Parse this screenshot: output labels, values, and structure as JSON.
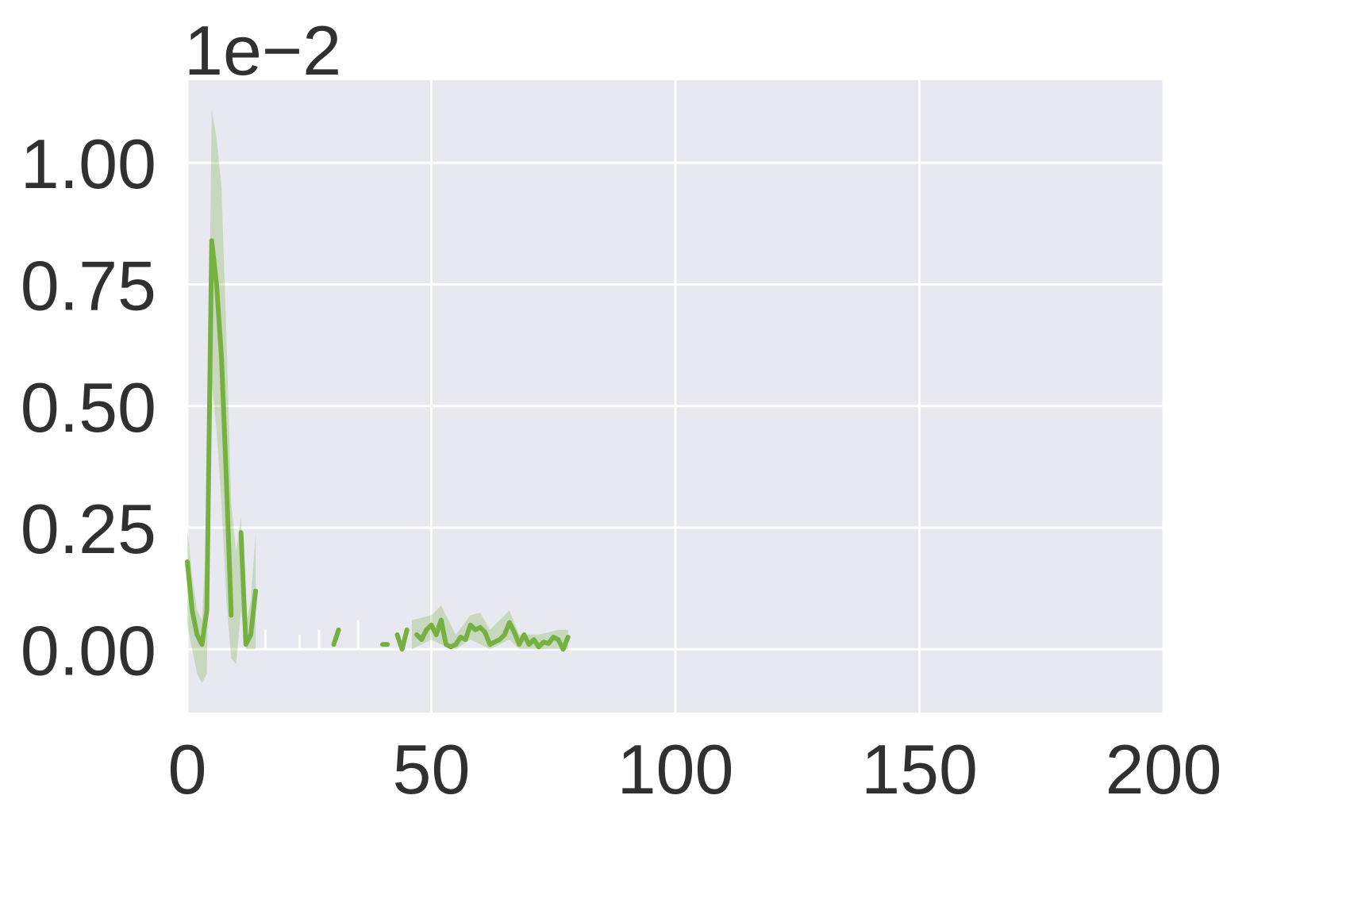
{
  "chart_data": {
    "type": "line",
    "offset_text": "1e−2",
    "xlim": [
      0,
      200
    ],
    "ylim": [
      -0.13,
      1.17
    ],
    "xticks": [
      0,
      50,
      100,
      150,
      200
    ],
    "xtick_labels": [
      "0",
      "50",
      "100",
      "150",
      "200"
    ],
    "yticks": [
      0.0,
      0.25,
      0.5,
      0.75,
      1.0
    ],
    "ytick_labels": [
      "0.00",
      "0.25",
      "0.50",
      "0.75",
      "1.00"
    ],
    "grid": true,
    "background": "#e8e8f0",
    "grid_color": "#ffffff",
    "line_color": "#76b041",
    "band_color": "#76b041",
    "series": [
      {
        "segments": [
          [
            [
              0,
              0.18
            ],
            [
              1,
              0.08
            ],
            [
              2,
              0.03
            ],
            [
              3,
              0.01
            ],
            [
              4,
              0.08
            ],
            [
              5,
              0.84
            ],
            [
              6,
              0.75
            ],
            [
              7,
              0.6
            ],
            [
              8,
              0.35
            ],
            [
              9,
              0.07
            ]
          ],
          [
            [
              11,
              0.24
            ],
            [
              12,
              0.01
            ],
            [
              13,
              0.03
            ],
            [
              14,
              0.12
            ]
          ],
          [
            [
              30,
              0.01
            ],
            [
              31,
              0.04
            ]
          ],
          [
            [
              40,
              0.01
            ],
            [
              41,
              0.01
            ]
          ],
          [
            [
              43,
              0.03
            ],
            [
              44,
              0.0
            ],
            [
              45,
              0.04
            ]
          ],
          [
            [
              47,
              0.03
            ],
            [
              48,
              0.02
            ],
            [
              49,
              0.04
            ],
            [
              50,
              0.05
            ],
            [
              51,
              0.03
            ],
            [
              52,
              0.06
            ],
            [
              53,
              0.01
            ],
            [
              54,
              0.005
            ],
            [
              55,
              0.01
            ],
            [
              56,
              0.025
            ],
            [
              57,
              0.02
            ],
            [
              58,
              0.05
            ],
            [
              59,
              0.04
            ],
            [
              60,
              0.045
            ],
            [
              61,
              0.035
            ],
            [
              62,
              0.01
            ],
            [
              63,
              0.015
            ],
            [
              64,
              0.02
            ],
            [
              65,
              0.03
            ],
            [
              66,
              0.055
            ],
            [
              67,
              0.035
            ],
            [
              68,
              0.01
            ],
            [
              69,
              0.03
            ],
            [
              70,
              0.01
            ],
            [
              71,
              0.02
            ],
            [
              72,
              0.005
            ],
            [
              73,
              0.015
            ],
            [
              74,
              0.012
            ],
            [
              75,
              0.025
            ],
            [
              76,
              0.02
            ],
            [
              77,
              0.0
            ],
            [
              78,
              0.025
            ]
          ]
        ],
        "band": [
          [
            [
              0,
              0.25,
              0.05
            ],
            [
              1,
              0.15,
              0.0
            ],
            [
              2,
              0.08,
              -0.05
            ],
            [
              3,
              0.06,
              -0.07
            ],
            [
              4,
              0.25,
              -0.05
            ],
            [
              5,
              1.11,
              0.55
            ],
            [
              6,
              1.05,
              0.45
            ],
            [
              7,
              0.95,
              0.3
            ],
            [
              8,
              0.65,
              0.1
            ],
            [
              9,
              0.3,
              -0.02
            ],
            [
              10,
              0.2,
              -0.03
            ],
            [
              11,
              0.27,
              0.08
            ],
            [
              12,
              0.05,
              0.0
            ],
            [
              13,
              0.1,
              0.0
            ],
            [
              14,
              0.24,
              0.0
            ]
          ],
          [
            [
              46,
              0.06,
              0.0
            ],
            [
              50,
              0.07,
              0.02
            ],
            [
              52,
              0.09,
              0.01
            ],
            [
              55,
              0.03,
              0.0
            ],
            [
              58,
              0.07,
              0.02
            ],
            [
              60,
              0.075,
              0.01
            ],
            [
              62,
              0.04,
              0.0
            ],
            [
              66,
              0.08,
              0.02
            ],
            [
              68,
              0.03,
              0.0
            ],
            [
              72,
              0.03,
              0.0
            ],
            [
              76,
              0.04,
              0.0
            ],
            [
              78,
              0.04,
              0.0
            ]
          ]
        ],
        "faint_ticks": [
          [
            16,
            0.0,
            0.04
          ],
          [
            23,
            0.0,
            0.03
          ],
          [
            27,
            0.0,
            0.04
          ],
          [
            35,
            0.0,
            0.06
          ]
        ]
      }
    ]
  }
}
